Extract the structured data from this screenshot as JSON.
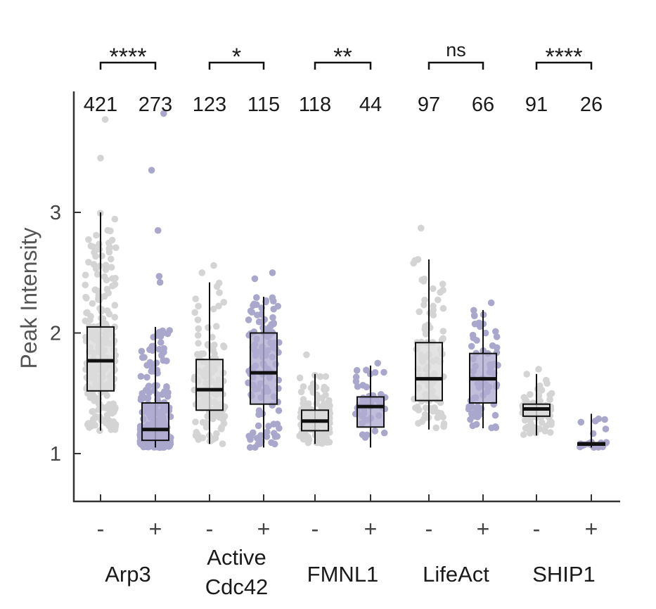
{
  "chart_data": {
    "type": "box",
    "title": "",
    "ylabel": "Peak Intensity",
    "ylim": [
      0.6,
      3.9
    ],
    "yticks": [
      1,
      2,
      3
    ],
    "ytick_labels": [
      "1",
      "2",
      "3"
    ],
    "colors": {
      "minus": "#d4d4d4",
      "plus": "#aaa7cc",
      "box_minus_fill": "#dcdcdc",
      "box_plus_fill": "#b2aed2",
      "line": "#111111"
    },
    "groups": [
      {
        "name": "Arp3",
        "label_lines": [
          "Arp3"
        ],
        "significance": "****"
      },
      {
        "name": "Active Cdc42",
        "label_lines": [
          "Active",
          "Cdc42"
        ],
        "significance": "*"
      },
      {
        "name": "FMNL1",
        "label_lines": [
          "FMNL1"
        ],
        "significance": "**"
      },
      {
        "name": "LifeAct",
        "label_lines": [
          "LifeAct"
        ],
        "significance": "ns"
      },
      {
        "name": "SHIP1",
        "label_lines": [
          "SHIP1"
        ],
        "significance": "****"
      }
    ],
    "series": [
      {
        "group": "Arp3",
        "condition": "-",
        "n": "421",
        "whisker_low": 1.19,
        "q1": 1.52,
        "median": 1.77,
        "q3": 2.05,
        "whisker_high": 3.0,
        "outliers": [
          3.45,
          3.77
        ]
      },
      {
        "group": "Arp3",
        "condition": "+",
        "n": "273",
        "whisker_low": 1.05,
        "q1": 1.11,
        "median": 1.2,
        "q3": 1.42,
        "whisker_high": 2.05,
        "outliers": [
          2.42,
          2.47,
          2.85,
          3.35,
          3.82
        ]
      },
      {
        "group": "Active Cdc42",
        "condition": "-",
        "n": "123",
        "whisker_low": 1.08,
        "q1": 1.36,
        "median": 1.53,
        "q3": 1.78,
        "whisker_high": 2.42,
        "outliers": [
          2.5,
          2.56
        ]
      },
      {
        "group": "Active Cdc42",
        "condition": "+",
        "n": "115",
        "whisker_low": 1.05,
        "q1": 1.41,
        "median": 1.67,
        "q3": 2.0,
        "whisker_high": 2.3,
        "outliers": [
          2.45,
          2.5
        ]
      },
      {
        "group": "FMNL1",
        "condition": "-",
        "n": "118",
        "whisker_low": 1.08,
        "q1": 1.19,
        "median": 1.27,
        "q3": 1.36,
        "whisker_high": 1.66,
        "outliers": [
          1.82
        ]
      },
      {
        "group": "FMNL1",
        "condition": "+",
        "n": "44",
        "whisker_low": 1.05,
        "q1": 1.22,
        "median": 1.39,
        "q3": 1.47,
        "whisker_high": 1.73,
        "outliers": [
          1.75
        ]
      },
      {
        "group": "LifeAct",
        "condition": "-",
        "n": "97",
        "whisker_low": 1.2,
        "q1": 1.44,
        "median": 1.62,
        "q3": 1.92,
        "whisker_high": 2.61,
        "outliers": [
          2.87
        ]
      },
      {
        "group": "LifeAct",
        "condition": "+",
        "n": "66",
        "whisker_low": 1.21,
        "q1": 1.42,
        "median": 1.62,
        "q3": 1.83,
        "whisker_high": 2.19,
        "outliers": [
          2.25
        ]
      },
      {
        "group": "SHIP1",
        "condition": "-",
        "n": "91",
        "whisker_low": 1.15,
        "q1": 1.31,
        "median": 1.37,
        "q3": 1.41,
        "whisker_high": 1.66,
        "outliers": [
          1.7
        ]
      },
      {
        "group": "SHIP1",
        "condition": "+",
        "n": "26",
        "whisker_low": 1.05,
        "q1": 1.07,
        "median": 1.08,
        "q3": 1.09,
        "whisker_high": 1.33,
        "outliers": [
          1.27
        ]
      }
    ]
  }
}
